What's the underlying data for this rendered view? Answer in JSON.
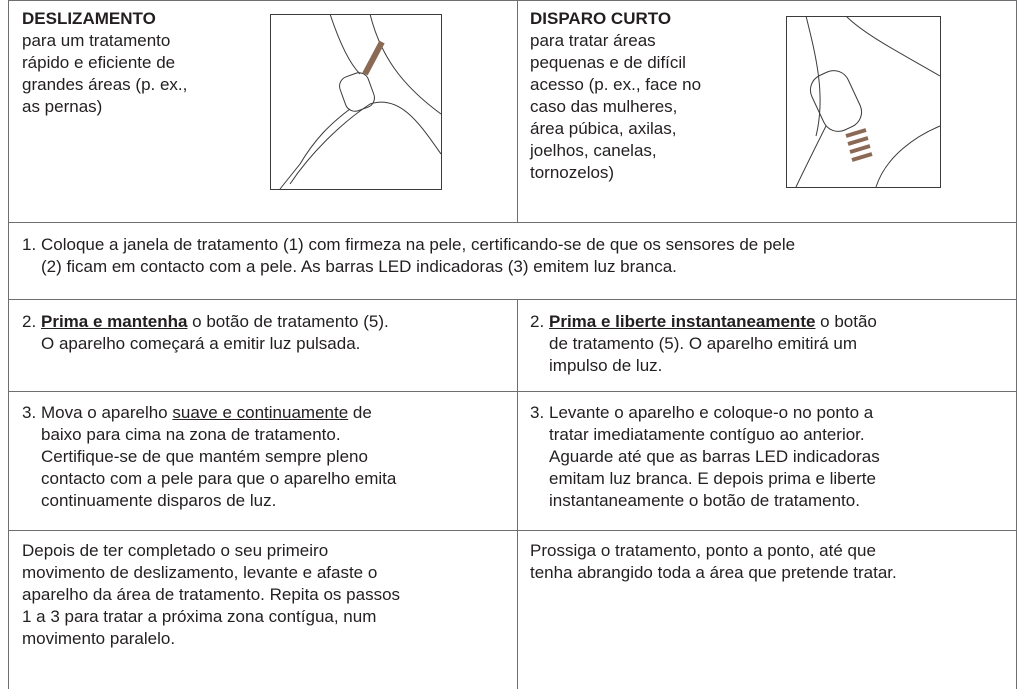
{
  "left": {
    "heading": "DESLIZAMENTO",
    "lines": [
      [
        "para um tratamento"
      ],
      [
        "rápido e eficiente de"
      ],
      [
        "grandes áreas (p. ex.,"
      ],
      [
        "as pernas)"
      ]
    ]
  },
  "right": {
    "heading": "DISPARO CURTO",
    "lines": [
      [
        "para tratar áreas"
      ],
      [
        "pequenas e de difícil"
      ],
      [
        "acesso (p. ex., face no"
      ],
      [
        "caso das mulheres,"
      ],
      [
        "área púbica, axilas,"
      ],
      [
        "joelhos, canelas,"
      ],
      [
        "tornozelos)"
      ]
    ]
  },
  "step1": {
    "number": "1.",
    "lines": [
      [
        "Coloque a janela de tratamento (1) com firmeza na pele, certificando-se de que os sensores de pele"
      ],
      [
        "(2) ficam em contacto com a pele. As barras LED indicadoras (3) emitem luz branca."
      ]
    ]
  },
  "step2_left": {
    "number": "2.",
    "lines": [
      [
        {
          "text": "Prima e mantenha",
          "style": "b"
        },
        " o botão de tratamento (5)."
      ],
      [
        "O aparelho começará a emitir luz pulsada."
      ]
    ]
  },
  "step2_right": {
    "number": "2.",
    "lines": [
      [
        {
          "text": "Prima e liberte instantaneamente",
          "style": "b"
        },
        " o botão"
      ],
      [
        "de tratamento (5). O aparelho emitirá um"
      ],
      [
        "impulso de luz."
      ]
    ]
  },
  "step3_left": {
    "number": "3.",
    "lines": [
      [
        "Mova o aparelho ",
        {
          "text": "suave e continuamente",
          "style": "u"
        },
        " de"
      ],
      [
        "baixo para cima na zona de tratamento."
      ],
      [
        "Certifique-se de que mantém sempre pleno"
      ],
      [
        "contacto com a pele para que o aparelho emita"
      ],
      [
        "continuamente disparos de luz."
      ]
    ]
  },
  "step3_right": {
    "number": "3.",
    "lines": [
      [
        "Levante o aparelho e coloque-o no ponto a"
      ],
      [
        "tratar imediatamente contíguo ao anterior."
      ],
      [
        "Aguarde até que as barras LED indicadoras"
      ],
      [
        "emitam luz branca. E depois prima e liberte"
      ],
      [
        "instantaneamente o botão de tratamento."
      ]
    ]
  },
  "final_left": {
    "lines": [
      [
        "Depois de ter completado o seu primeiro"
      ],
      [
        "movimento de deslizamento, levante e afaste o"
      ],
      [
        "aparelho da área de tratamento. Repita os passos"
      ],
      [
        "1 a 3 para tratar a próxima zona contígua, num"
      ],
      [
        "movimento paralelo."
      ]
    ]
  },
  "final_right": {
    "lines": [
      [
        "Prossiga o tratamento, ponto a ponto, até que"
      ],
      [
        "tenha abrangido toda a área que pretende tratar."
      ]
    ]
  }
}
